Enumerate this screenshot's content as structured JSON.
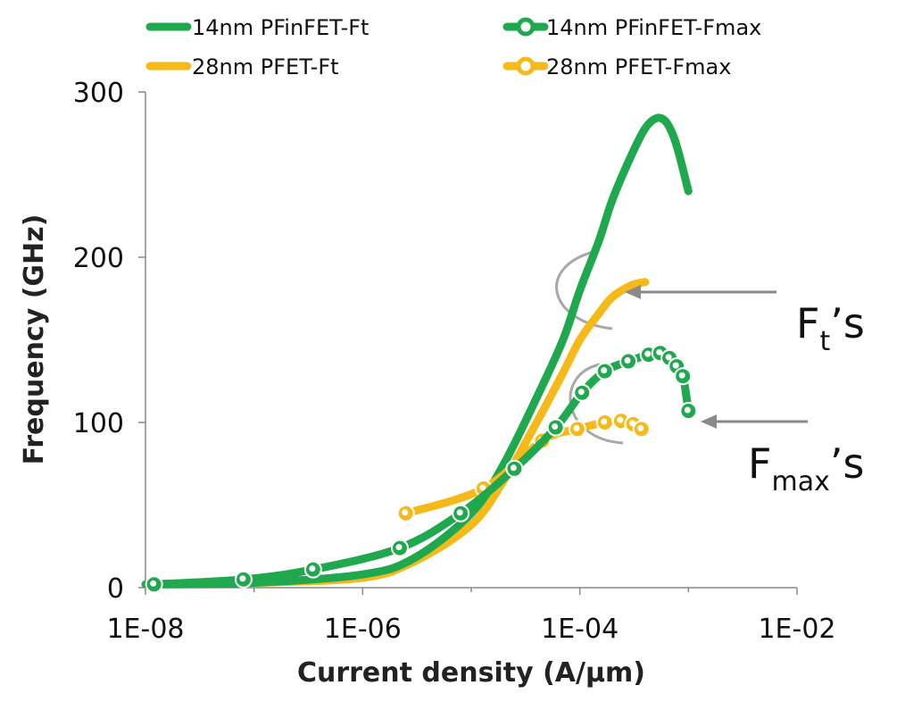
{
  "chart_data": {
    "type": "line",
    "title": "",
    "xlabel": "Current density (A/µm)",
    "ylabel": "Frequency (GHz)",
    "x_scale": "log",
    "xlim": [
      1e-08,
      0.01
    ],
    "ylim": [
      0,
      300
    ],
    "x_ticks": [
      "1E-08",
      "1E-06",
      "1E-04",
      "1E-02"
    ],
    "y_ticks": [
      "0",
      "100",
      "200",
      "300"
    ],
    "grid": false,
    "legend_placement": "top",
    "series": [
      {
        "name": "14nm PFinFET-Ft",
        "color": "#1fa84d",
        "markers": false,
        "x": [
          1e-08,
          1e-07,
          1e-06,
          3e-06,
          1e-05,
          2e-05,
          4e-05,
          7e-05,
          0.0001,
          0.00015,
          0.0002,
          0.0003,
          0.0004,
          0.0005,
          0.0006,
          0.0007,
          0.0008,
          0.001
        ],
        "y": [
          2,
          3,
          8,
          18,
          45,
          75,
          115,
          150,
          180,
          210,
          235,
          262,
          278,
          284,
          283,
          276,
          265,
          240
        ]
      },
      {
        "name": "14nm PFinFET-Fmax",
        "color": "#1fa84d",
        "markers": true,
        "x": [
          1.2e-08,
          8e-08,
          3.5e-07,
          2.2e-06,
          8e-06,
          2.5e-05,
          6e-05,
          0.000105,
          0.00017,
          0.00028,
          0.00043,
          0.00055,
          0.00067,
          0.00078,
          0.00089,
          0.001
        ],
        "y": [
          2,
          5,
          11,
          24,
          45,
          72,
          97,
          118,
          131,
          137,
          141,
          142,
          139,
          134,
          128,
          107
        ]
      },
      {
        "name": "28nm PFET-Ft",
        "color": "#f5b91a",
        "markers": false,
        "x": [
          1e-08,
          1e-07,
          1e-06,
          3e-06,
          1e-05,
          2e-05,
          4e-05,
          7e-05,
          0.0001,
          0.00015,
          0.0002,
          0.0003,
          0.0004
        ],
        "y": [
          2,
          3,
          6,
          16,
          38,
          65,
          100,
          130,
          150,
          166,
          176,
          183,
          185
        ]
      },
      {
        "name": "28nm PFET-Fmax",
        "color": "#f5b91a",
        "markers": true,
        "x": [
          2.5e-06,
          1.3e-05,
          4.5e-05,
          9.5e-05,
          0.00017,
          0.00024,
          0.00031,
          0.00037
        ],
        "y": [
          45,
          60,
          89,
          96,
          100,
          101,
          99,
          96
        ]
      }
    ],
    "annotations": [
      {
        "main": "F",
        "sub": "t",
        "suffix": "’s",
        "points_to": "28nm PFET-Ft"
      },
      {
        "main": "F",
        "sub": "max",
        "suffix": "’s",
        "points_to": "14nm PFinFET-Fmax"
      }
    ]
  }
}
